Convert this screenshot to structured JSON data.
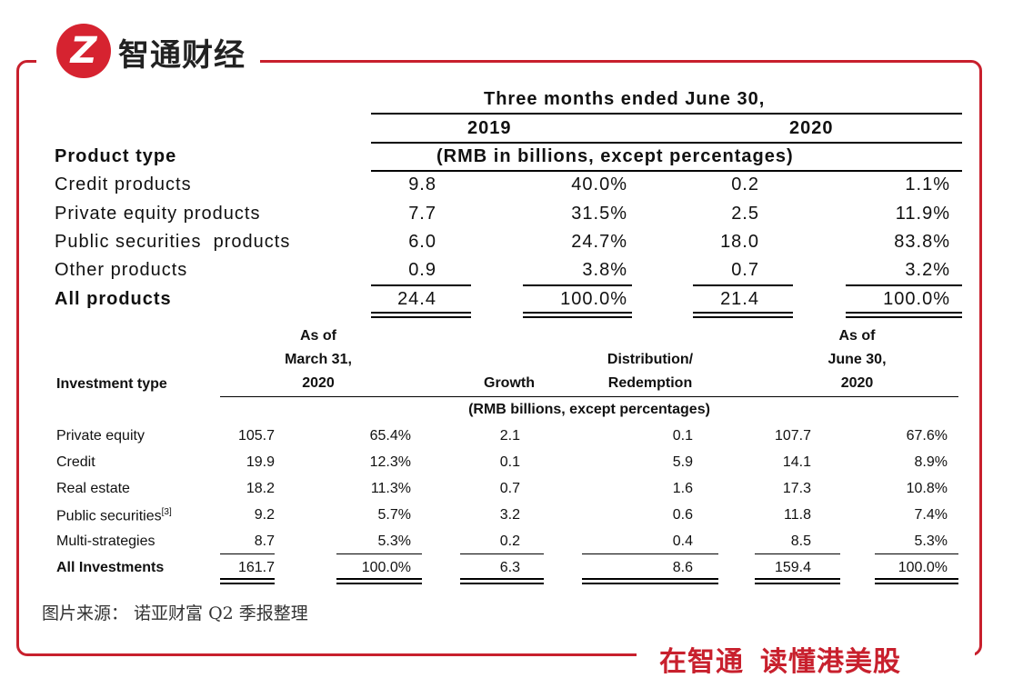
{
  "brand": {
    "logo_glyph": "Z",
    "name": "智通财经",
    "slogan_left": "在智通",
    "slogan_right": "读懂港美股",
    "accent": "#c8202d"
  },
  "caption": "图片来源： 诺亚财富 Q2 季报整理",
  "table1": {
    "period_header": "Three months ended June 30,",
    "year_a": "2019",
    "year_b": "2020",
    "row_header": "Product type",
    "unit_note": "(RMB in billions, except percentages)",
    "rows": [
      {
        "label": "Credit products",
        "a_val": "9.8",
        "a_pct": "40.0%",
        "b_val": "0.2",
        "b_pct": "1.1%"
      },
      {
        "label": "Private equity products",
        "a_val": "7.7",
        "a_pct": "31.5%",
        "b_val": "2.5",
        "b_pct": "11.9%"
      },
      {
        "label": "Public securities  products",
        "a_val": "6.0",
        "a_pct": "24.7%",
        "b_val": "18.0",
        "b_pct": "83.8%"
      },
      {
        "label": "Other products",
        "a_val": "0.9",
        "a_pct": "3.8%",
        "b_val": "0.7",
        "b_pct": "3.2%"
      }
    ],
    "total": {
      "label": "All products",
      "a_val": "24.4",
      "a_pct": "100.0%",
      "b_val": "21.4",
      "b_pct": "100.0%"
    }
  },
  "table2": {
    "col_type": "Investment type",
    "col_start": [
      "As of",
      "March 31,",
      "2020"
    ],
    "col_growth": "Growth",
    "col_dist": [
      "Distribution/",
      "Redemption"
    ],
    "col_end": [
      "As of",
      "June 30,",
      "2020"
    ],
    "unit_note": "(RMB billions, except percentages)",
    "rows": [
      {
        "label": "Private equity",
        "sup": "",
        "start": "105.7",
        "start_pct": "65.4%",
        "growth": "2.1",
        "dist": "0.1",
        "end": "107.7",
        "end_pct": "67.6%"
      },
      {
        "label": "Credit",
        "sup": "",
        "start": "19.9",
        "start_pct": "12.3%",
        "growth": "0.1",
        "dist": "5.9",
        "end": "14.1",
        "end_pct": "8.9%"
      },
      {
        "label": "Real estate",
        "sup": "",
        "start": "18.2",
        "start_pct": "11.3%",
        "growth": "0.7",
        "dist": "1.6",
        "end": "17.3",
        "end_pct": "10.8%"
      },
      {
        "label": "Public securities",
        "sup": "[3]",
        "start": "9.2",
        "start_pct": "5.7%",
        "growth": "3.2",
        "dist": "0.6",
        "end": "11.8",
        "end_pct": "7.4%"
      },
      {
        "label": "Multi-strategies",
        "sup": "",
        "start": "8.7",
        "start_pct": "5.3%",
        "growth": "0.2",
        "dist": "0.4",
        "end": "8.5",
        "end_pct": "5.3%"
      }
    ],
    "total": {
      "label": "All Investments",
      "start": "161.7",
      "start_pct": "100.0%",
      "growth": "6.3",
      "dist": "8.6",
      "end": "159.4",
      "end_pct": "100.0%"
    }
  }
}
